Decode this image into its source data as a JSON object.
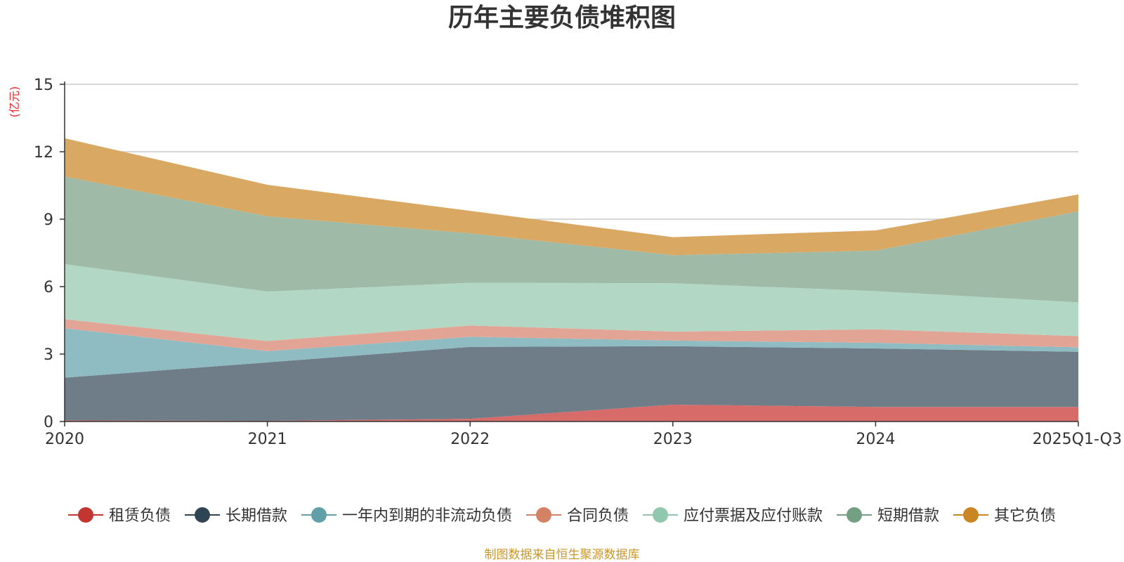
{
  "chart_data": {
    "type": "area",
    "stacked": true,
    "title": "历年主要负债堆积图",
    "ylabel": "(亿元)",
    "xlabel": "",
    "ylim": [
      0,
      15
    ],
    "yticks": [
      0,
      3,
      6,
      9,
      12,
      15
    ],
    "ytick_labels": [
      "0",
      "3",
      "6",
      "9",
      "12",
      "15"
    ],
    "categories": [
      "2020",
      "2021",
      "2022",
      "2023",
      "2024",
      "2025Q1-Q3"
    ],
    "grid": true,
    "legend_position": "bottom",
    "series": [
      {
        "name": "租赁负债",
        "color": "#c23531",
        "fill": "#d66b6a",
        "values": [
          0.05,
          0.03,
          0.12,
          0.75,
          0.65,
          0.65
        ]
      },
      {
        "name": "长期借款",
        "color": "#2f4554",
        "fill": "#6e7d88",
        "values": [
          1.9,
          2.6,
          3.2,
          2.6,
          2.6,
          2.45
        ]
      },
      {
        "name": "一年内到期的非流动负债",
        "color": "#61a0a8",
        "fill": "#8fbcc2",
        "values": [
          2.2,
          0.5,
          0.45,
          0.25,
          0.25,
          0.2
        ]
      },
      {
        "name": "合同负债",
        "color": "#d48265",
        "fill": "#e2a595",
        "values": [
          0.4,
          0.45,
          0.5,
          0.4,
          0.6,
          0.5
        ]
      },
      {
        "name": "应付票据及应付账款",
        "color": "#91c7ae",
        "fill": "#b2d8c5",
        "values": [
          2.45,
          2.2,
          1.9,
          2.15,
          1.7,
          1.5
        ]
      },
      {
        "name": "短期借款",
        "color": "#749f83",
        "fill": "#9fbaa7",
        "values": [
          3.9,
          3.35,
          2.2,
          1.25,
          1.8,
          4.05
        ]
      },
      {
        "name": "其它负债",
        "color": "#ca8622",
        "fill": "#d9a862",
        "values": [
          1.7,
          1.4,
          1.0,
          0.8,
          0.9,
          0.75
        ]
      }
    ]
  },
  "footer": {
    "source": "制图数据来自恒生聚源数据库"
  }
}
